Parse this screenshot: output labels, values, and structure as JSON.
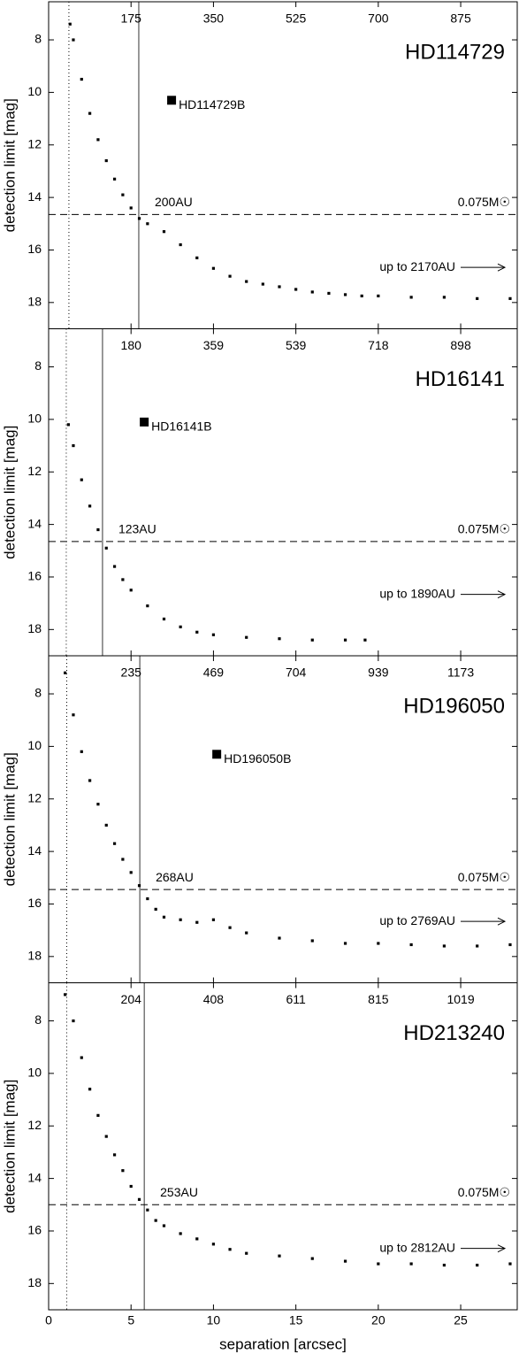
{
  "chart_data": [
    {
      "type": "scatter",
      "title": "HD114729",
      "ylabel": "detection limit [mag]",
      "x": [
        1.3,
        1.5,
        2,
        2.5,
        3,
        3.5,
        4,
        4.5,
        5,
        5.5,
        6,
        7,
        8,
        9,
        10,
        11,
        12,
        13,
        14,
        15,
        16,
        17,
        18,
        19,
        20,
        22,
        24,
        26,
        28
      ],
      "values": [
        7.4,
        8,
        9.5,
        10.8,
        11.8,
        12.6,
        13.3,
        13.9,
        14.4,
        14.8,
        15.0,
        15.3,
        15.8,
        16.3,
        16.7,
        17.0,
        17.2,
        17.3,
        17.4,
        17.5,
        17.6,
        17.65,
        17.7,
        17.75,
        17.75,
        17.8,
        17.8,
        17.85,
        17.85
      ],
      "xlim": [
        0,
        28.43
      ],
      "ylim": [
        19.0,
        6.55
      ],
      "yticks": [
        8,
        10,
        12,
        14,
        16,
        18
      ],
      "x2ticks": [
        {
          "value": 5,
          "label": "175"
        },
        {
          "value": 10,
          "label": "350"
        },
        {
          "value": 15,
          "label": "525"
        },
        {
          "value": 20,
          "label": "700"
        },
        {
          "value": 25,
          "label": "875"
        }
      ],
      "inner_limit": 1.23,
      "sep_line": 5.47,
      "mass_limit": 14.65,
      "mass_label": "0.075M☉",
      "sep_label": "200AU",
      "range_label": "up to 2170AU",
      "companion": {
        "name": "HD114729B",
        "x": 7.46,
        "y": 10.3
      }
    },
    {
      "type": "scatter",
      "title": "HD16141",
      "ylabel": "detection limit [mag]",
      "x": [
        1.2,
        1.5,
        2,
        2.5,
        3,
        3.5,
        4,
        4.5,
        5,
        6,
        7,
        8,
        9,
        10,
        12,
        14,
        16,
        18,
        19.2
      ],
      "values": [
        10.2,
        11,
        12.3,
        13.3,
        14.2,
        14.9,
        15.6,
        16.1,
        16.5,
        17.1,
        17.6,
        17.9,
        18.1,
        18.2,
        18.3,
        18.35,
        18.4,
        18.4,
        18.4
      ],
      "xlim": [
        0,
        28.43
      ],
      "ylim": [
        19.0,
        6.55
      ],
      "yticks": [
        8,
        10,
        12,
        14,
        16,
        18
      ],
      "x2ticks": [
        {
          "value": 5,
          "label": "180"
        },
        {
          "value": 10,
          "label": "359"
        },
        {
          "value": 15,
          "label": "539"
        },
        {
          "value": 20,
          "label": "718"
        },
        {
          "value": 25,
          "label": "898"
        }
      ],
      "inner_limit": 1.07,
      "sep_line": 3.27,
      "mass_limit": 14.65,
      "mass_label": "0.075M☉",
      "sep_label": "123AU",
      "range_label": "up to 1890AU",
      "companion": {
        "name": "HD16141B",
        "x": 5.8,
        "y": 10.1
      }
    },
    {
      "type": "scatter",
      "title": "HD196050",
      "ylabel": "detection limit [mag]",
      "x": [
        1.0,
        1.5,
        2,
        2.5,
        3,
        3.5,
        4,
        4.5,
        5,
        5.5,
        6,
        6.5,
        7,
        8,
        9,
        10,
        11,
        12,
        14,
        16,
        18,
        20,
        22,
        24,
        26,
        28
      ],
      "values": [
        7.2,
        8.8,
        10.2,
        11.3,
        12.2,
        13,
        13.7,
        14.3,
        14.8,
        15.3,
        15.8,
        16.2,
        16.5,
        16.6,
        16.7,
        16.6,
        16.9,
        17.1,
        17.3,
        17.4,
        17.5,
        17.5,
        17.55,
        17.6,
        17.6,
        17.55
      ],
      "xlim": [
        0,
        28.43
      ],
      "ylim": [
        19.0,
        6.55
      ],
      "yticks": [
        8,
        10,
        12,
        14,
        16,
        18
      ],
      "x2ticks": [
        {
          "value": 5,
          "label": "235"
        },
        {
          "value": 10,
          "label": "469"
        },
        {
          "value": 15,
          "label": "704"
        },
        {
          "value": 20,
          "label": "939"
        },
        {
          "value": 25,
          "label": "1173"
        }
      ],
      "inner_limit": 1.1,
      "sep_line": 5.53,
      "mass_limit": 15.45,
      "mass_label": "0.075M☉",
      "sep_label": "268AU",
      "range_label": "up to 2769AU",
      "companion": {
        "name": "HD196050B",
        "x": 10.2,
        "y": 10.3
      }
    },
    {
      "type": "scatter",
      "title": "HD213240",
      "ylabel": "detection limit [mag]",
      "xlabel": "separation [arcsec]",
      "x": [
        1.0,
        1.5,
        2,
        2.5,
        3,
        3.5,
        4,
        4.5,
        5,
        5.5,
        6,
        6.5,
        7,
        8,
        9,
        10,
        11,
        12,
        14,
        16,
        18,
        20,
        22,
        24,
        26,
        28
      ],
      "values": [
        7.0,
        8,
        9.4,
        10.6,
        11.6,
        12.4,
        13.1,
        13.7,
        14.3,
        14.8,
        15.2,
        15.6,
        15.8,
        16.1,
        16.3,
        16.5,
        16.7,
        16.85,
        16.95,
        17.05,
        17.15,
        17.25,
        17.25,
        17.3,
        17.3,
        17.25
      ],
      "xlim": [
        0,
        28.43
      ],
      "ylim": [
        19.0,
        6.55
      ],
      "yticks": [
        8,
        10,
        12,
        14,
        16,
        18
      ],
      "xticks": [
        0,
        5,
        10,
        15,
        20,
        25
      ],
      "x2ticks": [
        {
          "value": 5,
          "label": "204"
        },
        {
          "value": 10,
          "label": "408"
        },
        {
          "value": 15,
          "label": "611"
        },
        {
          "value": 20,
          "label": "815"
        },
        {
          "value": 25,
          "label": "1019"
        }
      ],
      "inner_limit": 1.1,
      "sep_line": 5.8,
      "mass_limit": 15.0,
      "mass_label": "0.075M☉",
      "sep_label": "253AU",
      "range_label": "up to 2812AU"
    }
  ]
}
